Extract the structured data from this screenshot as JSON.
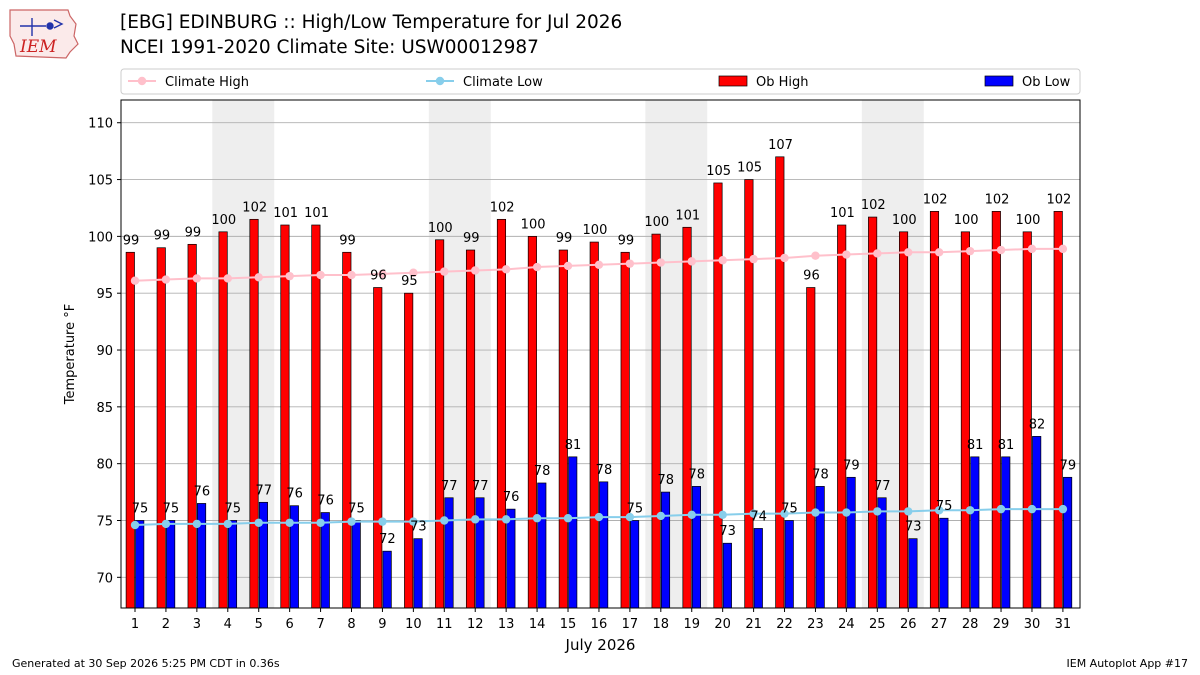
{
  "header": {
    "title_line1": "[EBG] EDINBURG :: High/Low Temperature for Jul 2026",
    "title_line2": "NCEI 1991-2020 Climate Site: USW00012987"
  },
  "logo": {
    "text": "IEM"
  },
  "footer": {
    "generated": "Generated at 30 Sep 2026 5:25 PM CDT in 0.36s",
    "app": "IEM Autoplot App #17"
  },
  "colors": {
    "ob_high": "#ff0000",
    "ob_low": "#0000ff",
    "climate_high": "#ffc0cb",
    "climate_low": "#87ceeb",
    "weekend_band": "#eeeeee",
    "grid": "#b0b0b0"
  },
  "chart_data": {
    "type": "bar",
    "xlabel": "July 2026",
    "ylabel": "Temperature °F",
    "ylim": [
      67.3,
      112
    ],
    "yticks": [
      70,
      75,
      80,
      85,
      90,
      95,
      100,
      105,
      110
    ],
    "grid": "horizontal",
    "legend_placement": "top",
    "categories": [
      "1",
      "2",
      "3",
      "4",
      "5",
      "6",
      "7",
      "8",
      "9",
      "10",
      "11",
      "12",
      "13",
      "14",
      "15",
      "16",
      "17",
      "18",
      "19",
      "20",
      "21",
      "22",
      "23",
      "24",
      "25",
      "26",
      "27",
      "28",
      "29",
      "30",
      "31"
    ],
    "shaded_day_ranges": [
      [
        4,
        5
      ],
      [
        11,
        12
      ],
      [
        18,
        19
      ],
      [
        25,
        26
      ]
    ],
    "series": [
      {
        "name": "Climate High",
        "kind": "line",
        "values": [
          96.1,
          96.2,
          96.3,
          96.3,
          96.4,
          96.5,
          96.6,
          96.6,
          96.7,
          96.8,
          96.9,
          97.0,
          97.1,
          97.3,
          97.4,
          97.5,
          97.6,
          97.7,
          97.8,
          97.9,
          98.0,
          98.1,
          98.3,
          98.4,
          98.5,
          98.6,
          98.6,
          98.7,
          98.8,
          98.9,
          98.9
        ]
      },
      {
        "name": "Climate Low",
        "kind": "line",
        "values": [
          74.6,
          74.7,
          74.7,
          74.7,
          74.8,
          74.8,
          74.8,
          74.9,
          74.9,
          74.9,
          75.0,
          75.1,
          75.1,
          75.2,
          75.2,
          75.3,
          75.3,
          75.4,
          75.5,
          75.5,
          75.6,
          75.6,
          75.7,
          75.7,
          75.8,
          75.8,
          75.9,
          75.9,
          76.0,
          76.0,
          76.0
        ]
      },
      {
        "name": "Ob High",
        "kind": "bar",
        "values": [
          98.6,
          99.0,
          99.3,
          100.4,
          101.5,
          101.0,
          101.0,
          98.6,
          95.5,
          95.0,
          99.7,
          98.8,
          101.5,
          100.0,
          98.8,
          99.5,
          98.6,
          100.2,
          100.8,
          104.7,
          105.0,
          107.0,
          95.5,
          101.0,
          101.7,
          100.4,
          102.2,
          100.4,
          102.2,
          100.4,
          102.2
        ],
        "labels": [
          "99",
          "99",
          "99",
          "100",
          "102",
          "101",
          "101",
          "99",
          "96",
          "95",
          "100",
          "99",
          "102",
          "100",
          "99",
          "100",
          "99",
          "100",
          "101",
          "105",
          "105",
          "107",
          "96",
          "101",
          "102",
          "100",
          "102",
          "100",
          "102",
          "100",
          "102"
        ]
      },
      {
        "name": "Ob Low",
        "kind": "bar",
        "values": [
          75.0,
          75.0,
          76.5,
          75.0,
          76.6,
          76.3,
          75.7,
          75.0,
          72.3,
          73.4,
          77.0,
          77.0,
          76.0,
          78.3,
          80.6,
          78.4,
          75.0,
          77.5,
          78.0,
          73.0,
          74.3,
          75.0,
          78.0,
          78.8,
          77.0,
          73.4,
          75.2,
          80.6,
          80.6,
          82.4,
          78.8
        ],
        "labels": [
          "75",
          "75",
          "76",
          "75",
          "77",
          "76",
          "76",
          "75",
          "72",
          "73",
          "77",
          "77",
          "76",
          "78",
          "81",
          "78",
          "75",
          "78",
          "78",
          "73",
          "74",
          "75",
          "78",
          "79",
          "77",
          "73",
          "75",
          "81",
          "81",
          "82",
          "79"
        ]
      }
    ]
  }
}
